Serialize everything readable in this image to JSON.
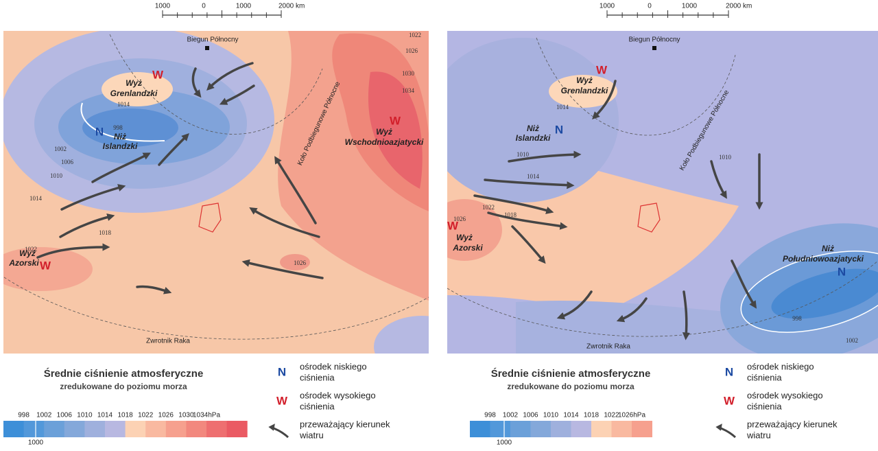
{
  "panels": [
    {
      "scale_bar": [
        "1000",
        "0",
        "1000",
        "2000 km"
      ],
      "pole": "Biegun Północny",
      "arctic_circle": "Koło Podbiegunowe Północne",
      "tropic": "Zwrotnik Raka",
      "centers": [
        {
          "symbol": "W",
          "label": [
            "Wyż",
            "Grenlandzki"
          ]
        },
        {
          "symbol": "N",
          "label": [
            "Niż",
            "Islandzki"
          ]
        },
        {
          "symbol": "W",
          "label": [
            "Wyż",
            "Wschodnioazjatycki"
          ]
        },
        {
          "symbol": "W",
          "label": [
            "Wyż",
            "Azorski"
          ]
        }
      ],
      "isobars": [
        "1022",
        "1026",
        "1030",
        "1034",
        "1014",
        "998",
        "1002",
        "1006",
        "1010",
        "1014",
        "1018",
        "1022",
        "1026"
      ],
      "legend": {
        "title": "Średnie ciśnienie atmosferyczne",
        "subtitle": "zredukowane do poziomu morza",
        "items": [
          {
            "symbol": "N",
            "label": [
              "ośrodek niskiego",
              "ciśnienia"
            ]
          },
          {
            "symbol": "W",
            "label": [
              "ośrodek wysokiego",
              "ciśnienia"
            ]
          },
          {
            "label": [
              "przeważający kierunek",
              "wiatru"
            ]
          }
        ],
        "scale": {
          "labels": [
            "998",
            "1002",
            "1006",
            "1010",
            "1014",
            "1018",
            "1022",
            "1026",
            "1030",
            "1034hPa"
          ],
          "extra": "1000",
          "colors": [
            "#3d8fd8",
            "#5298da",
            "#6ba0d9",
            "#84a8da",
            "#9fb0dd",
            "#b8b8e1",
            "#fcd2b4",
            "#f9b9a0",
            "#f6a08e",
            "#f2887e",
            "#ee6f70",
            "#ea5a63"
          ]
        }
      }
    },
    {
      "scale_bar": [
        "1000",
        "0",
        "1000",
        "2000 km"
      ],
      "pole": "Biegun Północny",
      "arctic_circle": "Koło Podbiegunowe Północne",
      "tropic": "Zwrotnik Raka",
      "centers": [
        {
          "symbol": "W",
          "label": [
            "Wyż",
            "Grenlandzki"
          ]
        },
        {
          "symbol": "N",
          "label": [
            "Niż",
            "Islandzki"
          ]
        },
        {
          "symbol": "N",
          "label": [
            "Niż",
            "Południowoazjatycki"
          ]
        },
        {
          "symbol": "W",
          "label": [
            "Wyż",
            "Azorski"
          ]
        }
      ],
      "isobars": [
        "1014",
        "1010",
        "1014",
        "1022",
        "1026",
        "1018",
        "1010",
        "998",
        "1002"
      ],
      "legend": {
        "title": "Średnie ciśnienie atmosferyczne",
        "subtitle": "zredukowane do poziomu morza",
        "items": [
          {
            "symbol": "N",
            "label": [
              "ośrodek niskiego",
              "ciśnienia"
            ]
          },
          {
            "symbol": "W",
            "label": [
              "ośrodek wysokiego",
              "ciśnienia"
            ]
          },
          {
            "label": [
              "przeważający kierunek",
              "wiatru"
            ]
          }
        ],
        "scale": {
          "labels": [
            "998",
            "1002",
            "1006",
            "1010",
            "1014",
            "1018",
            "1022",
            "1026hPa"
          ],
          "extra": "1000",
          "colors": [
            "#3d8fd8",
            "#5298da",
            "#6ba0d9",
            "#84a8da",
            "#9fb0dd",
            "#b8b8e1",
            "#fcd2b4",
            "#f9b9a0",
            "#f6a08e"
          ]
        }
      }
    }
  ]
}
